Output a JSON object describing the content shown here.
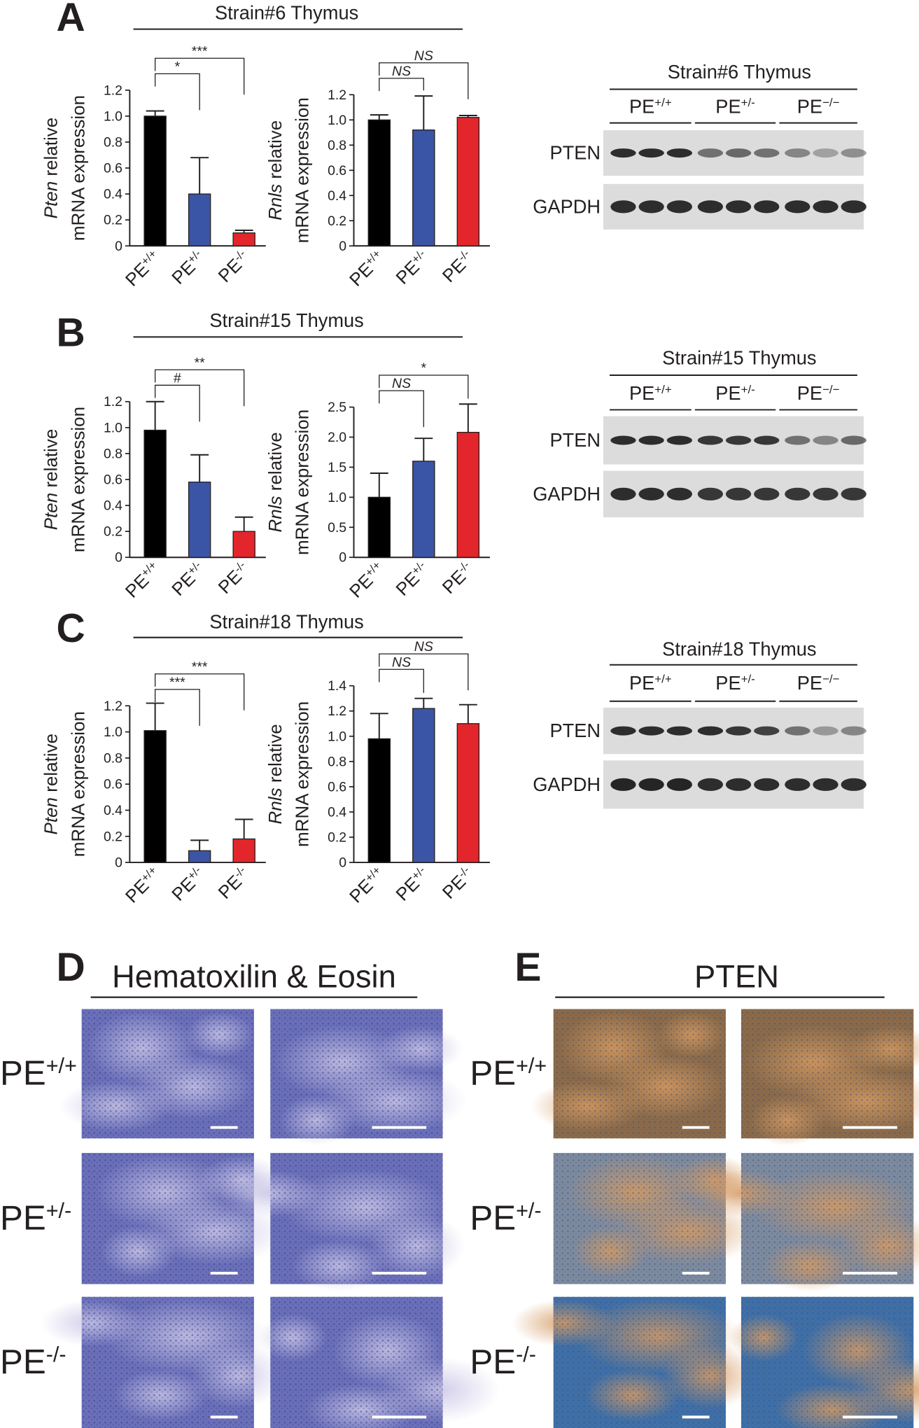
{
  "chart_data": [
    {
      "type": "bar",
      "ylabel": [
        "Pten relative",
        "mRNA expression"
      ],
      "categories": [
        "PE+/+",
        "PE+/-",
        "PE-/-"
      ],
      "values": [
        1.0,
        0.4,
        0.1
      ],
      "errors": [
        0.04,
        0.28,
        0.02
      ],
      "colors": [
        "#000000",
        "#3b55a6",
        "#e3262b"
      ],
      "ylim": [
        0,
        1.2
      ],
      "yticks": [
        0,
        0.2,
        0.4,
        0.6,
        0.8,
        {
          "value": 1,
          "label": "1.0"
        },
        1.2
      ],
      "annotations": [
        {
          "label": "*",
          "from": 0,
          "to": 1
        },
        {
          "label": "***",
          "from": 0,
          "to": 2
        }
      ]
    },
    {
      "type": "bar",
      "ylabel": [
        "Rnls relative",
        "mRNA expression"
      ],
      "categories": [
        "PE+/+",
        "PE+/-",
        "PE-/-"
      ],
      "values": [
        1.0,
        0.92,
        1.02
      ],
      "errors": [
        0.04,
        0.27,
        0.015
      ],
      "colors": [
        "#000000",
        "#3b55a6",
        "#e3262b"
      ],
      "ylim": [
        0,
        1.2
      ],
      "yticks": [
        0,
        0.2,
        0.4,
        0.6,
        0.8,
        {
          "value": 1,
          "label": "1.0"
        },
        1.2
      ],
      "annotations": [
        {
          "label": "NS",
          "from": 0,
          "to": 1
        },
        {
          "label": "NS",
          "from": 0,
          "to": 2
        }
      ]
    },
    {
      "type": "bar",
      "ylabel": [
        "Pten relative",
        "mRNA expression"
      ],
      "categories": [
        "PE+/+",
        "PE+/-",
        "PE-/-"
      ],
      "values": [
        0.98,
        0.58,
        0.2
      ],
      "errors": [
        0.22,
        0.21,
        0.11
      ],
      "colors": [
        "#000000",
        "#3b55a6",
        "#e3262b"
      ],
      "ylim": [
        0,
        1.2
      ],
      "yticks": [
        0,
        0.2,
        0.4,
        0.6,
        0.8,
        {
          "value": 1,
          "label": "1.0"
        },
        1.2
      ],
      "annotations": [
        {
          "label": "#",
          "from": 0,
          "to": 1
        },
        {
          "label": "**",
          "from": 0,
          "to": 2
        }
      ]
    },
    {
      "type": "bar",
      "ylabel": [
        "Rnls relative",
        "mRNA expression"
      ],
      "categories": [
        "PE+/+",
        "PE+/-",
        "PE-/-"
      ],
      "values": [
        1.0,
        1.6,
        2.08
      ],
      "errors": [
        0.4,
        0.38,
        0.47
      ],
      "colors": [
        "#000000",
        "#3b55a6",
        "#e3262b"
      ],
      "ylim": [
        0,
        2.5
      ],
      "yticks": [
        0,
        0.5,
        {
          "value": 1,
          "label": "1.0"
        },
        1.5,
        {
          "value": 2,
          "label": "2.0"
        },
        2.5
      ],
      "annotations": [
        {
          "label": "NS",
          "from": 0,
          "to": 1
        },
        {
          "label": "*",
          "from": 0,
          "to": 2
        }
      ]
    },
    {
      "type": "bar",
      "ylabel": [
        "Pten relative",
        "mRNA expression"
      ],
      "categories": [
        "PE+/+",
        "PE+/-",
        "PE-/-"
      ],
      "values": [
        1.01,
        0.09,
        0.18
      ],
      "errors": [
        0.21,
        0.08,
        0.15
      ],
      "colors": [
        "#000000",
        "#3b55a6",
        "#e3262b"
      ],
      "ylim": [
        0,
        1.2
      ],
      "yticks": [
        0,
        0.2,
        0.4,
        0.6,
        0.8,
        {
          "value": 1,
          "label": "1.0"
        },
        1.2
      ],
      "annotations": [
        {
          "label": "***",
          "from": 0,
          "to": 1
        },
        {
          "label": "***",
          "from": 0,
          "to": 2
        }
      ]
    },
    {
      "type": "bar",
      "ylabel": [
        "Rnls relative",
        "mRNA expression"
      ],
      "categories": [
        "PE+/+",
        "PE+/-",
        "PE-/-"
      ],
      "values": [
        0.98,
        1.22,
        1.1
      ],
      "errors": [
        0.2,
        0.08,
        0.15
      ],
      "colors": [
        "#000000",
        "#3b55a6",
        "#e3262b"
      ],
      "ylim": [
        0,
        1.4
      ],
      "yticks": [
        0,
        0.2,
        0.4,
        0.6,
        0.8,
        {
          "value": 1,
          "label": "1.0"
        },
        1.2,
        1.4
      ],
      "annotations": [
        {
          "label": "NS",
          "from": 0,
          "to": 1
        },
        {
          "label": "NS",
          "from": 0,
          "to": 2
        }
      ]
    }
  ],
  "figure": {
    "letters": [
      "A",
      "B",
      "C",
      "D",
      "E"
    ],
    "strain_headers": [
      "Strain#6 Thymus",
      "Strain#15 Thymus",
      "Strain#18 Thymus"
    ],
    "blots": [
      {
        "title": "Strain#6 Thymus",
        "groups": [
          "PE+/+",
          "PE+/-",
          "PE−/−"
        ],
        "rows": [
          "PTEN",
          "GAPDH"
        ]
      },
      {
        "title": "Strain#15 Thymus",
        "groups": [
          "PE+/+",
          "PE+/-",
          "PE−/−"
        ],
        "rows": [
          "PTEN",
          "GAPDH"
        ]
      },
      {
        "title": "Strain#18 Thymus",
        "groups": [
          "PE+/+",
          "PE+/-",
          "PE−/−"
        ],
        "rows": [
          "PTEN",
          "GAPDH"
        ]
      }
    ],
    "histology": [
      {
        "title": "Hematoxilin & Eosin",
        "rows": [
          "PE+/+",
          "PE+/-",
          "PE-/-"
        ]
      },
      {
        "title": "PTEN",
        "rows": [
          "PE+/+",
          "PE+/-",
          "PE-/-"
        ]
      }
    ]
  }
}
